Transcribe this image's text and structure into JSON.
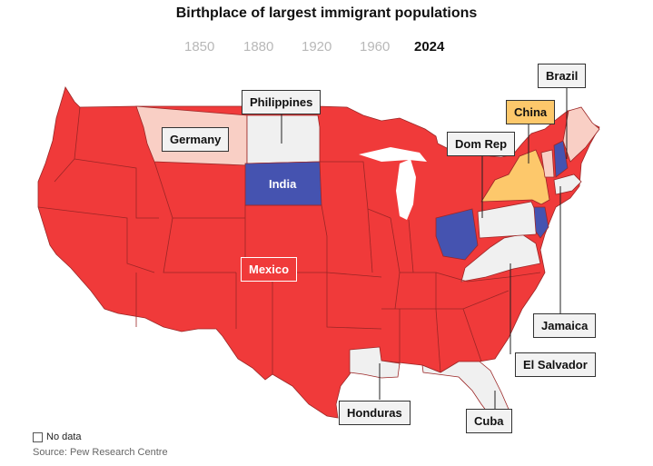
{
  "title": "Birthplace of largest immigrant populations",
  "years": [
    "1850",
    "1880",
    "1920",
    "1960",
    "2024"
  ],
  "selected_year": "2024",
  "labels": {
    "philippines": "Philippines",
    "germany": "Germany",
    "india": "India",
    "mexico": "Mexico",
    "brazil": "Brazil",
    "china": "China",
    "domrep": "Dom Rep",
    "jamaica": "Jamaica",
    "elsalvador": "El Salvador",
    "honduras": "Honduras",
    "cuba": "Cuba"
  },
  "legend": {
    "no_data": "No data"
  },
  "source": "Source: Pew Research Centre",
  "colors": {
    "mexico": "#f03a3a",
    "germany": "#f9cfc5",
    "philippines": "#f0f0f0",
    "india": "#4553b0",
    "china": "#fdc86b",
    "brazil": "#f9cfc5",
    "domrep": "#f0f0f0",
    "jamaica": "#f0f0f0",
    "elsalvador": "#f0f0f0",
    "honduras": "#f0f0f0",
    "cuba": "#f0f0f0",
    "border": "#9b2626"
  }
}
